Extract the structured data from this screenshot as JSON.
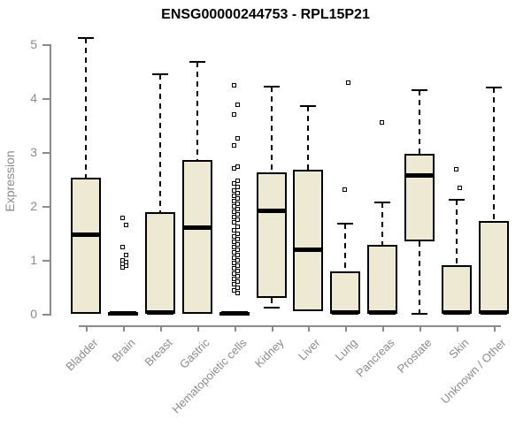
{
  "chart_data": {
    "type": "boxplot",
    "title": "ENSG00000244753 - RPL15P21",
    "ylabel": "Expression",
    "xlabel": "",
    "ylim": [
      0,
      5
    ],
    "yticks": [
      0,
      1,
      2,
      3,
      4,
      5
    ],
    "grid": false,
    "legend": false,
    "colors": {
      "box_fill": "#EEE9D2",
      "box_stroke": "#000000",
      "axis": "#8a8a8a",
      "title": "#000000",
      "background": "#ffffff"
    },
    "categories": [
      "Bladder",
      "Brain",
      "Breast",
      "Gastric",
      "Hematopoietic cells",
      "Kidney",
      "Liver",
      "Lung",
      "Pancreas",
      "Prostate",
      "Skin",
      "Unknown / Other"
    ],
    "boxes": [
      {
        "category": "Bladder",
        "whisker_low": 0,
        "q1": 0,
        "median": 1.48,
        "q3": 2.52,
        "whisker_high": 5.12,
        "outliers": []
      },
      {
        "category": "Brain",
        "whisker_low": 0,
        "q1": 0,
        "median": 0.02,
        "q3": 0.04,
        "whisker_high": 0.04,
        "outliers": [
          1.78,
          1.65,
          1.25,
          1.1,
          1.0,
          0.97,
          0.93,
          0.9,
          0.87
        ]
      },
      {
        "category": "Breast",
        "whisker_low": 0,
        "q1": 0,
        "median": 0.03,
        "q3": 1.88,
        "whisker_high": 4.45,
        "outliers": []
      },
      {
        "category": "Gastric",
        "whisker_low": 0,
        "q1": 0,
        "median": 1.6,
        "q3": 2.85,
        "whisker_high": 4.67,
        "outliers": []
      },
      {
        "category": "Hematopoietic cells",
        "whisker_low": 0,
        "q1": 0,
        "median": 0.02,
        "q3": 0.04,
        "whisker_high": 0.04,
        "outliers": [
          4.25,
          3.88,
          3.7,
          3.27,
          3.13,
          2.73,
          2.7,
          2.48,
          2.42,
          2.36,
          2.3,
          2.25,
          2.2,
          2.15,
          2.1,
          2.05,
          2.0,
          1.95,
          1.9,
          1.85,
          1.8,
          1.75,
          1.7,
          1.63,
          1.55,
          1.5,
          1.45,
          1.4,
          1.35,
          1.3,
          1.25,
          1.2,
          1.15,
          1.1,
          1.05,
          1.0,
          0.95,
          0.9,
          0.85,
          0.8,
          0.75,
          0.7,
          0.65,
          0.6,
          0.55,
          0.5,
          0.45,
          0.4
        ]
      },
      {
        "category": "Kidney",
        "whisker_low": 0.12,
        "q1": 0.3,
        "median": 1.92,
        "q3": 2.63,
        "whisker_high": 4.22,
        "outliers": []
      },
      {
        "category": "Liver",
        "whisker_low": 0.05,
        "q1": 0.05,
        "median": 1.2,
        "q3": 2.67,
        "whisker_high": 3.85,
        "outliers": []
      },
      {
        "category": "Lung",
        "whisker_low": 0,
        "q1": 0,
        "median": 0.03,
        "q3": 0.78,
        "whisker_high": 1.67,
        "outliers": [
          2.31,
          4.3
        ]
      },
      {
        "category": "Pancreas",
        "whisker_low": 0,
        "q1": 0,
        "median": 0.03,
        "q3": 1.28,
        "whisker_high": 2.07,
        "outliers": [
          3.56
        ]
      },
      {
        "category": "Prostate",
        "whisker_low": 0,
        "q1": 1.35,
        "median": 2.57,
        "q3": 2.97,
        "whisker_high": 4.15,
        "outliers": []
      },
      {
        "category": "Skin",
        "whisker_low": 0,
        "q1": 0,
        "median": 0.03,
        "q3": 0.9,
        "whisker_high": 2.12,
        "outliers": [
          2.69,
          2.35
        ]
      },
      {
        "category": "Unknown / Other",
        "whisker_low": 0,
        "q1": 0,
        "median": 0.03,
        "q3": 1.72,
        "whisker_high": 4.2,
        "outliers": []
      }
    ]
  }
}
